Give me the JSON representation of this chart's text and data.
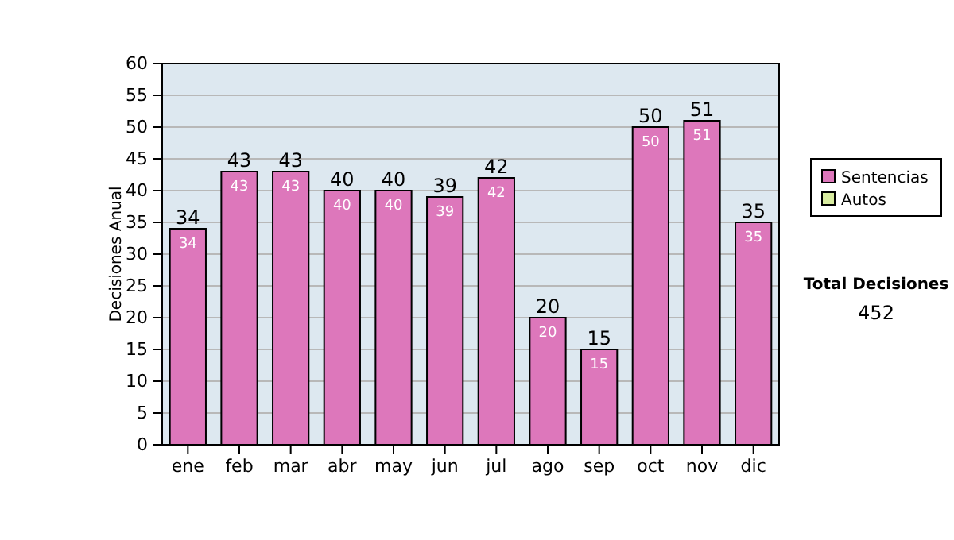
{
  "chart_data": {
    "type": "bar",
    "stacked": true,
    "ylabel": "Decisiones Anual",
    "categories": [
      "ene",
      "feb",
      "mar",
      "abr",
      "may",
      "jun",
      "jul",
      "ago",
      "sep",
      "oct",
      "nov",
      "dic"
    ],
    "series": [
      {
        "name": "Sentencias",
        "color": "#dd77bb",
        "values": [
          34,
          43,
          43,
          40,
          40,
          39,
          42,
          20,
          15,
          50,
          51,
          35
        ],
        "value_labels": [
          "34",
          "43",
          "43",
          "40",
          "40",
          "39",
          "42",
          "20",
          "15",
          "50",
          "51",
          "35"
        ]
      },
      {
        "name": "Autos",
        "color": "#d8eca0",
        "values": [
          0,
          0,
          0,
          0,
          0,
          0,
          0,
          0,
          0,
          0,
          0,
          0
        ]
      }
    ],
    "totals": [
      "34",
      "43",
      "43",
      "40",
      "40",
      "39",
      "42",
      "20",
      "15",
      "50",
      "51",
      "35"
    ],
    "ylim": [
      0,
      60
    ],
    "yticks": [
      0,
      5,
      10,
      15,
      20,
      25,
      30,
      35,
      40,
      45,
      50,
      55,
      60
    ],
    "grid": "y",
    "legend": "right",
    "annotations": [
      "Total Decisiones",
      "452"
    ]
  }
}
